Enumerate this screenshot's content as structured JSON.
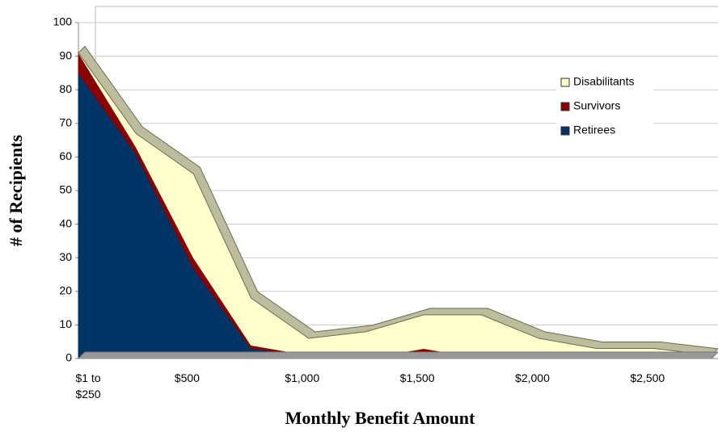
{
  "chart_data": {
    "type": "area",
    "y_label": "# of Recipients",
    "x_label": "Monthly Benefit Amount",
    "categories": [
      "$1 to $250",
      null,
      "$500",
      null,
      "$1,000",
      null,
      "$1,500",
      null,
      "$2,000",
      null,
      "$2,500",
      null
    ],
    "series": [
      {
        "name": "Retirees",
        "color": "#003366",
        "values": [
          85,
          61,
          27,
          3,
          1,
          0,
          2,
          0,
          0,
          0,
          0,
          0
        ]
      },
      {
        "name": "Survivors",
        "color": "#8b0000",
        "values": [
          6,
          2,
          3,
          1,
          0,
          0,
          1,
          0,
          0,
          0,
          0,
          0
        ]
      },
      {
        "name": "Disabilitants",
        "color": "#ffffcc",
        "values": [
          0,
          4,
          25,
          14,
          5,
          8,
          10,
          13,
          6,
          3,
          3,
          1
        ]
      }
    ],
    "stacked": true,
    "ylim": [
      0,
      100
    ],
    "yticks": [
      0,
      10,
      20,
      30,
      40,
      50,
      60,
      70,
      80,
      90,
      100
    ],
    "grid": true,
    "legend": "upper right"
  }
}
